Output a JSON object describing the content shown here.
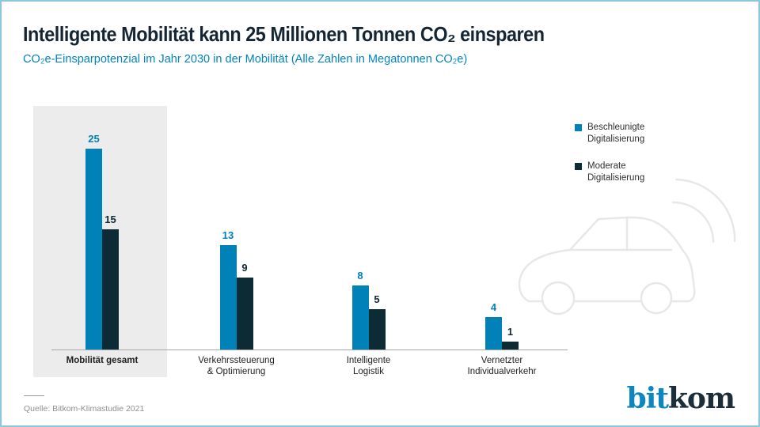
{
  "header": {
    "title": "Intelligente Mobilität kann 25 Millionen Tonnen CO₂ einsparen",
    "subtitle": "CO₂e-Einsparpotenzial im Jahr 2030 in der Mobilität (Alle Zahlen in Megatonnen CO₂e)"
  },
  "chart_data": {
    "type": "bar",
    "categories": [
      "Mobilität gesamt",
      "Verkehrssteuerung & Optimierung",
      "Intelligente Logistik",
      "Vernetzter Individualverkehr"
    ],
    "category_label_lines": [
      [
        "Mobilität gesamt"
      ],
      [
        "Verkehrssteuerung",
        "& Optimierung"
      ],
      [
        "Intelligente",
        "Logistik"
      ],
      [
        "Vernetzter",
        "Individualverkehr"
      ]
    ],
    "series": [
      {
        "name": "Beschleunigte Digitalisierung",
        "color": "#0081b8",
        "values": [
          25,
          13,
          8,
          4
        ]
      },
      {
        "name": "Moderate Digitalisierung",
        "color": "#0d2b35",
        "values": [
          15,
          9,
          5,
          1
        ]
      }
    ],
    "unit": "Megatonnen CO₂e",
    "ylim": [
      0,
      25
    ],
    "grid": false,
    "legend_position": "top-right",
    "highlight": {
      "category": "Mobilität gesamt",
      "background": "#ececec"
    },
    "title": "Intelligente Mobilität kann 25 Millionen Tonnen CO₂ einsparen",
    "subtitle": "CO₂e-Einsparpotenzial im Jahr 2030 in der Mobilität (Alle Zahlen in Megatonnen CO₂e)"
  },
  "legend": [
    {
      "label": "Beschleunigte Digitalisierung",
      "color": "#0081b8"
    },
    {
      "label": "Moderate Digitalisierung",
      "color": "#0d2b35"
    }
  ],
  "decor": {
    "car_icon": "connected-car-outline",
    "car_color": "#e7e7e7"
  },
  "footer": {
    "source": "Quelle: Bitkom-Klimastudie 2021",
    "logo_part1": "bit",
    "logo_part2": "kom",
    "logo_color1": "#0e87c0",
    "logo_color2": "#1c2e3a"
  }
}
